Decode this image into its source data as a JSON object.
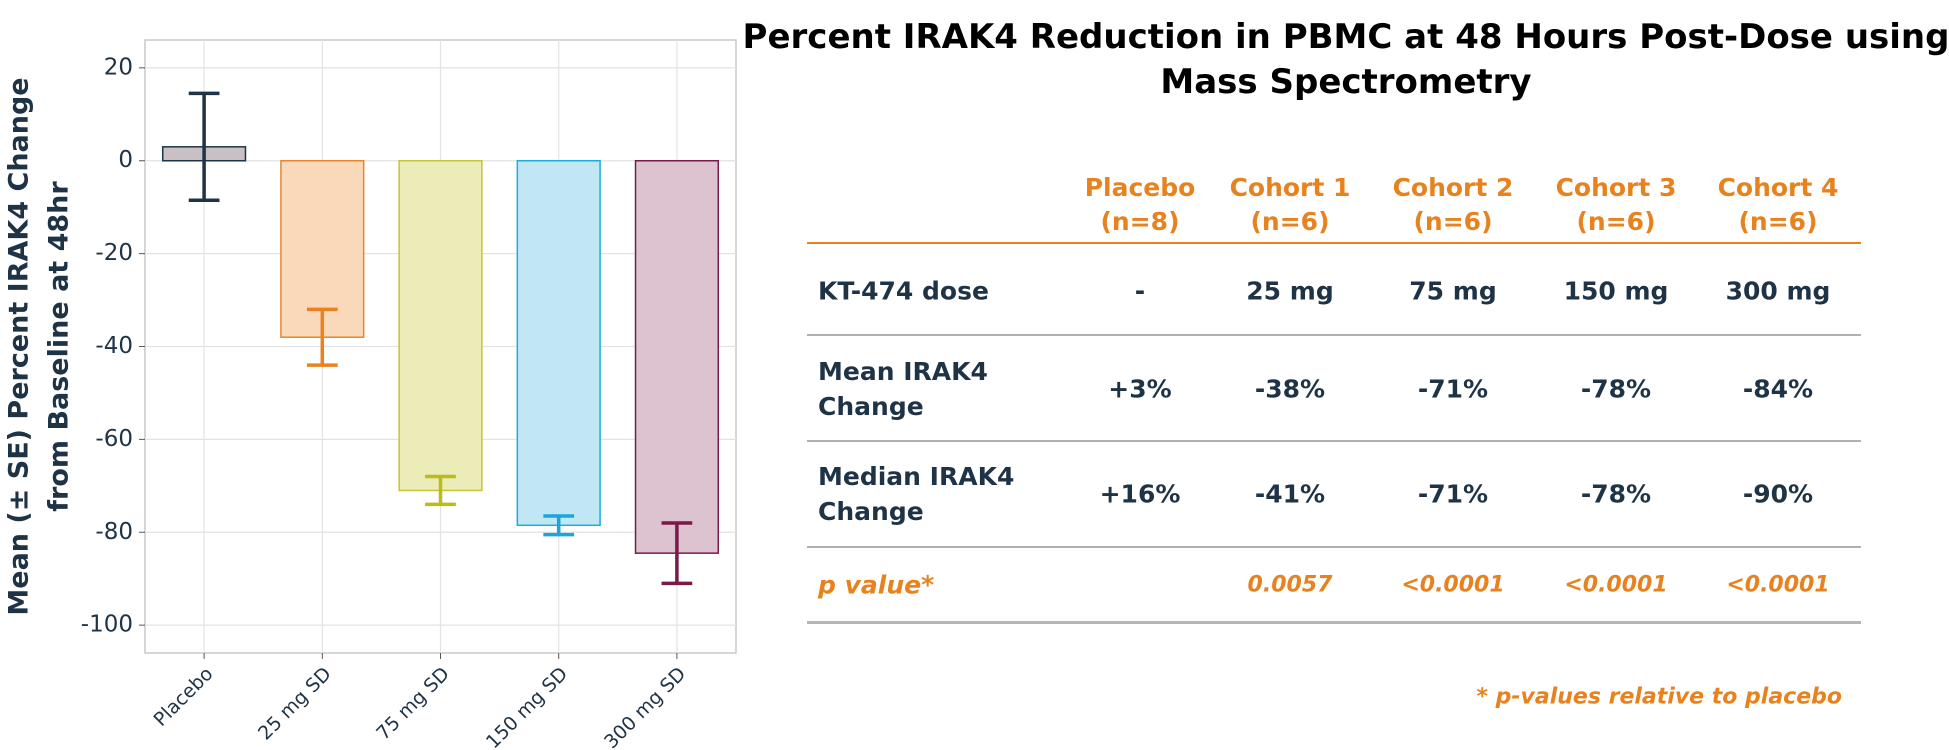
{
  "chart_data": {
    "type": "bar",
    "ylabel": [
      "Mean (± SE) Percent IRAK4 Change",
      "from Baseline at 48hr"
    ],
    "categories": [
      "Placebo",
      "25 mg SD",
      "75 mg SD",
      "150 mg SD",
      "300 mg SD"
    ],
    "values": [
      3,
      -38,
      -71,
      -78.5,
      -84.5
    ],
    "errors": [
      11.5,
      6,
      3,
      2,
      6.5
    ],
    "colors": [
      "#c9c0c6",
      "#f9d9ba",
      "#ebecb8",
      "#c1e6f4",
      "#dcc3cf"
    ],
    "edge_colors": [
      "#1f3346",
      "#e8872a",
      "#c3c536",
      "#1caedc",
      "#7a1a48"
    ],
    "error_colors": [
      "#1f3346",
      "#e8821e",
      "#b9bd1a",
      "#1aa6d8",
      "#7a1a48"
    ],
    "ylim": [
      -106,
      26
    ],
    "yticks": [
      20,
      0,
      -20,
      -40,
      -60,
      -80,
      -100
    ],
    "grid": true
  },
  "table": {
    "title": [
      "Percent IRAK4 Reduction in PBMC at 48 Hours Post-Dose using",
      "Mass Spectrometry"
    ],
    "columns": [
      [
        "Placebo",
        "(n=8)"
      ],
      [
        "Cohort 1",
        "(n=6)"
      ],
      [
        "Cohort 2",
        "(n=6)"
      ],
      [
        "Cohort 3",
        "(n=6)"
      ],
      [
        "Cohort 4",
        "(n=6)"
      ]
    ],
    "rows": [
      {
        "label": [
          "KT-474 dose"
        ],
        "cells": [
          "-",
          "25 mg",
          "75 mg",
          "150 mg",
          "300 mg"
        ]
      },
      {
        "label": [
          "Mean IRAK4",
          "Change"
        ],
        "cells": [
          "+3%",
          "-38%",
          "-71%",
          "-78%",
          "-84%"
        ]
      },
      {
        "label": [
          "Median IRAK4",
          "Change"
        ],
        "cells": [
          "+16%",
          "-41%",
          "-71%",
          "-78%",
          "-90%"
        ]
      },
      {
        "label": [
          "p value*"
        ],
        "cells": [
          "",
          "0.0057",
          "<0.0001",
          "<0.0001",
          "<0.0001"
        ]
      }
    ],
    "footnote": "* p-values relative to placebo"
  }
}
